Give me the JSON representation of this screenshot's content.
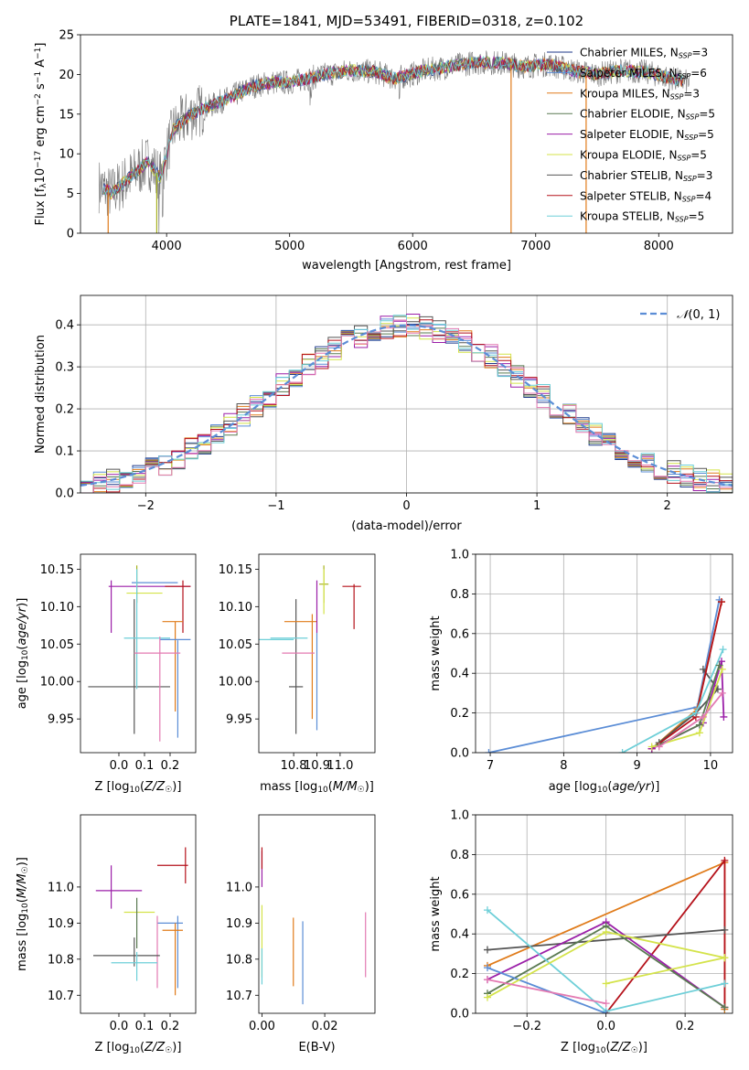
{
  "colors": {
    "Chabrier MILES": "#1f3a8a",
    "Salpeter MILES": "#5b8dd6",
    "Kroupa MILES": "#e07b1a",
    "Chabrier ELODIE": "#5a7a52",
    "Salpeter ELODIE": "#9b1fa8",
    "Kroupa ELODIE": "#d4e34a",
    "Chabrier STELIB": "#555555",
    "Salpeter STELIB": "#b5121b",
    "Kroupa STELIB": "#6ecfd8",
    "pink": "#e37ab2",
    "olive": "#a7b21d",
    "normal_curve": "#5b8dd6"
  },
  "chart_data": [
    {
      "id": "spectrum",
      "type": "line",
      "title": "PLATE=1841, MJD=53491, FIBERID=0318, z=0.102",
      "xlabel": "wavelength [Angstrom, rest frame]",
      "ylabel": "Flux [f$_\\lambda$10$^{-17}$ erg cm$^{-2}$ s$^{-1}$ A$^{-1}$]",
      "ylabel_parts": {
        "a": "Flux [f",
        "sub1": "λ",
        "b": "10",
        "sup1": "−17",
        "c": " erg cm",
        "sup2": "−2",
        "d": " s",
        "sup3": "−1",
        "e": " A",
        "sup4": "−1",
        "f": "]"
      },
      "xlim": [
        3300,
        8600
      ],
      "ylim": [
        0,
        25
      ],
      "xticks": [
        4000,
        5000,
        6000,
        7000,
        8000
      ],
      "yticks": [
        0,
        5,
        10,
        15,
        20,
        25
      ],
      "grid": false,
      "legend_position": "top-right",
      "continuum_knots": {
        "x": [
          3450,
          3550,
          3700,
          3850,
          3950,
          4050,
          4200,
          4350,
          4500,
          4700,
          4850,
          5000,
          5150,
          5300,
          5500,
          5700,
          5850,
          5950,
          6100,
          6300,
          6500,
          6700,
          6900,
          7100,
          7300,
          7500,
          7700,
          7900,
          8100,
          8250
        ],
        "y": [
          6,
          5,
          7,
          9,
          7,
          13,
          15,
          16,
          17,
          18.5,
          19,
          19,
          19.5,
          20,
          20.5,
          20.3,
          19.5,
          19.8,
          20.5,
          21,
          21.5,
          21.5,
          21,
          21.3,
          20.5,
          20,
          20.5,
          20.3,
          19.5,
          19
        ]
      },
      "legend": [
        {
          "name": "Chabrier MILES",
          "lib": "SSP",
          "n": "3"
        },
        {
          "name": "Salpeter MILES",
          "lib": "SSP",
          "n": "6"
        },
        {
          "name": "Kroupa MILES",
          "lib": "SSP",
          "n": "3"
        },
        {
          "name": "Chabrier ELODIE",
          "lib": "SSP",
          "n": "5"
        },
        {
          "name": "Salpeter ELODIE",
          "lib": "SSP",
          "n": "5"
        },
        {
          "name": "Kroupa ELODIE",
          "lib": "SSP",
          "n": "5"
        },
        {
          "name": "Chabrier STELIB",
          "lib": "SSP",
          "n": "3"
        },
        {
          "name": "Salpeter STELIB",
          "lib": "SSP",
          "n": "4"
        },
        {
          "name": "Kroupa STELIB",
          "lib": "SSP",
          "n": "5"
        }
      ]
    },
    {
      "id": "histogram",
      "type": "line",
      "xlabel": "(data-model)/error",
      "ylabel": "Normed distribution",
      "xlim": [
        -2.5,
        2.5
      ],
      "ylim": [
        0,
        0.47
      ],
      "xticks": [
        -2,
        -1,
        0,
        1,
        2
      ],
      "yticks": [
        0.0,
        0.1,
        0.2,
        0.3,
        0.4
      ],
      "grid": true,
      "legend_position": "top-right",
      "legend": [
        {
          "name": "N(0,1)",
          "style": "dashed"
        }
      ],
      "bin_width": 0.1
    },
    {
      "id": "age_vs_Z",
      "type": "scatter",
      "xlabel": "Z [log10(Z/Z☉)]",
      "ylabel": "age  [log10(age/yr)]",
      "xlim": [
        -0.15,
        0.3
      ],
      "ylim": [
        9.905,
        10.17
      ],
      "xticks": [
        0.0,
        0.1,
        0.2
      ],
      "yticks": [
        9.95,
        10.0,
        10.05,
        10.1,
        10.15
      ],
      "points": [
        {
          "c": "Chabrier STELIB",
          "x": 0.04,
          "xe": 0.16,
          "y": 9.993,
          "ye": 0
        },
        {
          "c": "Chabrier STELIB",
          "x": 0.06,
          "xe": 0,
          "y": 10.02,
          "ye": 0.09
        },
        {
          "c": "Salpeter ELODIE",
          "x": -0.03,
          "xe": 0,
          "y": 10.1,
          "ye": 0.035
        },
        {
          "c": "Salpeter ELODIE",
          "x": 0.12,
          "xe": 0.16,
          "y": 10.127,
          "ye": 0
        },
        {
          "c": "Kroupa ELODIE",
          "x": 0.1,
          "xe": 0.07,
          "y": 10.118,
          "ye": 0
        },
        {
          "c": "olive",
          "x": 0.07,
          "xe": 0,
          "y": 10.13,
          "ye": 0.025
        },
        {
          "c": "Salpeter STELIB",
          "x": 0.23,
          "xe": 0.05,
          "y": 10.127,
          "ye": 0
        },
        {
          "c": "Salpeter STELIB",
          "x": 0.25,
          "xe": 0,
          "y": 10.1,
          "ye": 0.035
        },
        {
          "c": "Salpeter MILES",
          "x": 0.14,
          "xe": 0.09,
          "y": 10.132,
          "ye": 0
        },
        {
          "c": "Kroupa STELIB",
          "x": 0.11,
          "xe": 0.09,
          "y": 10.058,
          "ye": 0
        },
        {
          "c": "Kroupa STELIB",
          "x": 0.07,
          "xe": 0,
          "y": 10.07,
          "ye": 0.08
        },
        {
          "c": "Kroupa MILES",
          "x": 0.21,
          "xe": 0.04,
          "y": 10.08,
          "ye": 0
        },
        {
          "c": "Kroupa MILES",
          "x": 0.22,
          "xe": 0,
          "y": 10.02,
          "ye": 0.06
        },
        {
          "c": "Salpeter MILES",
          "x": 0.22,
          "xe": 0.06,
          "y": 10.056,
          "ye": 0
        },
        {
          "c": "Salpeter MILES",
          "x": 0.23,
          "xe": 0,
          "y": 9.99,
          "ye": 0.065
        },
        {
          "c": "pink",
          "x": 0.15,
          "xe": 0.09,
          "y": 10.038,
          "ye": 0
        },
        {
          "c": "pink",
          "x": 0.16,
          "xe": 0,
          "y": 9.99,
          "ye": 0.07
        }
      ]
    },
    {
      "id": "age_vs_mass",
      "type": "scatter",
      "xlabel": "mass [log10(M/M☉)]",
      "ylabel": "",
      "xlim": [
        10.65,
        11.15
      ],
      "ylim": [
        9.905,
        10.17
      ],
      "xticks": [
        10.8,
        10.9,
        11.0
      ],
      "yticks": [
        9.95,
        10.0,
        10.05,
        10.1,
        10.15
      ],
      "points": [
        {
          "c": "Chabrier STELIB",
          "x": 10.81,
          "xe": 0.03,
          "y": 9.993,
          "ye": 0
        },
        {
          "c": "Chabrier STELIB",
          "x": 10.81,
          "xe": 0,
          "y": 10.02,
          "ye": 0.09
        },
        {
          "c": "Kroupa STELIB",
          "x": 10.72,
          "xe": 0.08,
          "y": 10.056,
          "ye": 0
        },
        {
          "c": "Kroupa STELIB",
          "x": 10.78,
          "xe": 0.08,
          "y": 10.058,
          "ye": 0
        },
        {
          "c": "Kroupa MILES",
          "x": 10.83,
          "xe": 0.07,
          "y": 10.08,
          "ye": 0
        },
        {
          "c": "Kroupa MILES",
          "x": 10.88,
          "xe": 0,
          "y": 10.02,
          "ye": 0.07
        },
        {
          "c": "pink",
          "x": 10.82,
          "xe": 0.07,
          "y": 10.038,
          "ye": 0
        },
        {
          "c": "Salpeter MILES",
          "x": 10.9,
          "xe": 0,
          "y": 10.0,
          "ye": 0.065
        },
        {
          "c": "Salpeter ELODIE",
          "x": 10.9,
          "xe": 0,
          "y": 10.1,
          "ye": 0.035
        },
        {
          "c": "olive",
          "x": 10.93,
          "xe": 0.02,
          "y": 10.13,
          "ye": 0
        },
        {
          "c": "olive",
          "x": 10.93,
          "xe": 0,
          "y": 10.13,
          "ye": 0.025
        },
        {
          "c": "Kroupa ELODIE",
          "x": 10.93,
          "xe": 0,
          "y": 10.12,
          "ye": 0.03
        },
        {
          "c": "Salpeter STELIB",
          "x": 11.05,
          "xe": 0.04,
          "y": 10.127,
          "ye": 0
        },
        {
          "c": "Salpeter STELIB",
          "x": 11.06,
          "xe": 0,
          "y": 10.1,
          "ye": 0.03
        }
      ]
    },
    {
      "id": "weight_vs_age",
      "type": "line",
      "xlabel": "age  [log10(age/yr)]",
      "ylabel": "mass weight",
      "xlim": [
        6.8,
        10.3
      ],
      "ylim": [
        0,
        1.0
      ],
      "xticks": [
        7,
        8,
        9,
        10
      ],
      "yticks": [
        0.0,
        0.2,
        0.4,
        0.6,
        0.8,
        1.0
      ],
      "grid": true,
      "series": [
        {
          "c": "Salpeter MILES",
          "x": [
            6.98,
            9.82,
            10.12
          ],
          "y": [
            0.0,
            0.23,
            0.77
          ]
        },
        {
          "c": "Kroupa MILES",
          "x": [
            9.2,
            9.82,
            10.15
          ],
          "y": [
            0.02,
            0.22,
            0.76
          ]
        },
        {
          "c": "Chabrier STELIB",
          "x": [
            9.3,
            9.8,
            10.1,
            9.9
          ],
          "y": [
            0.05,
            0.2,
            0.32,
            0.42
          ]
        },
        {
          "c": "Salpeter STELIB",
          "x": [
            9.2,
            9.8,
            10.15
          ],
          "y": [
            0.02,
            0.18,
            0.76
          ]
        },
        {
          "c": "Salpeter ELODIE",
          "x": [
            9.2,
            9.9,
            10.15,
            10.18
          ],
          "y": [
            0.02,
            0.15,
            0.46,
            0.18
          ]
        },
        {
          "c": "Kroupa STELIB",
          "x": [
            8.8,
            9.8,
            10.17
          ],
          "y": [
            0.0,
            0.2,
            0.52
          ]
        },
        {
          "c": "Kroupa ELODIE",
          "x": [
            9.2,
            9.85,
            10.16
          ],
          "y": [
            0.03,
            0.1,
            0.42
          ]
        },
        {
          "c": "Chabrier ELODIE",
          "x": [
            9.3,
            9.85,
            10.12
          ],
          "y": [
            0.04,
            0.14,
            0.44
          ]
        },
        {
          "c": "pink",
          "x": [
            9.3,
            9.9,
            10.16
          ],
          "y": [
            0.03,
            0.18,
            0.3
          ]
        }
      ]
    },
    {
      "id": "mass_vs_Z",
      "type": "scatter",
      "xlabel": "Z [log10(Z/Z☉)]",
      "ylabel": "mass [log10(M/M☉)]",
      "xlim": [
        -0.15,
        0.3
      ],
      "ylim": [
        10.65,
        11.2
      ],
      "xticks": [
        0.0,
        0.1,
        0.2
      ],
      "yticks": [
        10.7,
        10.8,
        10.9,
        11.0
      ],
      "points": [
        {
          "c": "Salpeter STELIB",
          "x": 0.21,
          "xe": 0.06,
          "y": 11.06,
          "ye": 0
        },
        {
          "c": "Salpeter STELIB",
          "x": 0.26,
          "xe": 0,
          "y": 11.06,
          "ye": 0.05
        },
        {
          "c": "Salpeter ELODIE",
          "x": 0.0,
          "xe": 0.09,
          "y": 10.99,
          "ye": 0
        },
        {
          "c": "Salpeter ELODIE",
          "x": -0.03,
          "xe": 0,
          "y": 11.0,
          "ye": 0.06
        },
        {
          "c": "Kroupa ELODIE",
          "x": 0.08,
          "xe": 0.06,
          "y": 10.93,
          "ye": 0
        },
        {
          "c": "Chabrier ELODIE",
          "x": 0.07,
          "xe": 0,
          "y": 10.9,
          "ye": 0.07
        },
        {
          "c": "Salpeter MILES",
          "x": 0.2,
          "xe": 0.05,
          "y": 10.9,
          "ye": 0
        },
        {
          "c": "Salpeter MILES",
          "x": 0.23,
          "xe": 0,
          "y": 10.82,
          "ye": 0.1
        },
        {
          "c": "Kroupa MILES",
          "x": 0.21,
          "xe": 0.04,
          "y": 10.88,
          "ye": 0
        },
        {
          "c": "Kroupa MILES",
          "x": 0.22,
          "xe": 0,
          "y": 10.8,
          "ye": 0.1
        },
        {
          "c": "pink",
          "x": 0.15,
          "xe": 0,
          "y": 10.82,
          "ye": 0.1
        },
        {
          "c": "Chabrier STELIB",
          "x": 0.03,
          "xe": 0.13,
          "y": 10.81,
          "ye": 0
        },
        {
          "c": "Chabrier STELIB",
          "x": 0.06,
          "xe": 0,
          "y": 10.82,
          "ye": 0.04
        },
        {
          "c": "Kroupa STELIB",
          "x": 0.06,
          "xe": 0.09,
          "y": 10.79,
          "ye": 0
        },
        {
          "c": "Kroupa STELIB",
          "x": 0.07,
          "xe": 0,
          "y": 10.78,
          "ye": 0.04
        }
      ]
    },
    {
      "id": "mass_vs_EBV",
      "type": "scatter",
      "xlabel": "E(B-V)",
      "ylabel": "",
      "xlim": [
        -0.001,
        0.036
      ],
      "ylim": [
        10.65,
        11.2
      ],
      "xticks": [
        0.0,
        0.02
      ],
      "yticks": [
        10.7,
        10.8,
        10.9,
        11.0
      ],
      "points": [
        {
          "c": "Salpeter ELODIE",
          "x": 0.0,
          "xe": 0,
          "y": 11.05,
          "ye": 0.05
        },
        {
          "c": "Salpeter STELIB",
          "x": 0.0,
          "xe": 0,
          "y": 11.08,
          "ye": 0.03
        },
        {
          "c": "Kroupa ELODIE",
          "x": 0.0,
          "xe": 0,
          "y": 10.85,
          "ye": 0.1
        },
        {
          "c": "Kroupa STELIB",
          "x": 0.0,
          "xe": 0,
          "y": 10.78,
          "ye": 0.05
        },
        {
          "c": "Kroupa MILES",
          "x": 0.01,
          "xe": 0,
          "y": 10.82,
          "ye": 0.095
        },
        {
          "c": "Salpeter MILES",
          "x": 0.013,
          "xe": 0,
          "y": 10.79,
          "ye": 0.115
        },
        {
          "c": "pink",
          "x": 0.033,
          "xe": 0,
          "y": 10.84,
          "ye": 0.09
        }
      ]
    },
    {
      "id": "weight_vs_Z",
      "type": "line",
      "xlabel": "Z [log10(Z/Z☉)]",
      "ylabel": "mass weight",
      "xlim": [
        -0.33,
        0.32
      ],
      "ylim": [
        0,
        1.0
      ],
      "xticks": [
        -0.2,
        0.0,
        0.2
      ],
      "yticks": [
        0.0,
        0.2,
        0.4,
        0.6,
        0.8,
        1.0
      ],
      "grid": true,
      "series": [
        {
          "c": "Kroupa MILES",
          "x": [
            -0.3,
            0.3,
            0.3
          ],
          "y": [
            0.24,
            0.76,
            0.02
          ]
        },
        {
          "c": "Salpeter STELIB",
          "x": [
            0.0,
            0.3,
            0.3
          ],
          "y": [
            0.0,
            0.77,
            0.03
          ]
        },
        {
          "c": "Chabrier STELIB",
          "x": [
            -0.3,
            0.3
          ],
          "y": [
            0.32,
            0.42
          ]
        },
        {
          "c": "Salpeter ELODIE",
          "x": [
            -0.3,
            0.0,
            0.3
          ],
          "y": [
            0.17,
            0.46,
            0.03
          ]
        },
        {
          "c": "Chabrier ELODIE",
          "x": [
            -0.3,
            0.0,
            0.3
          ],
          "y": [
            0.1,
            0.44,
            0.03
          ]
        },
        {
          "c": "Kroupa STELIB",
          "x": [
            -0.3,
            0.0,
            0.3
          ],
          "y": [
            0.52,
            0.01,
            0.15
          ]
        },
        {
          "c": "Salpeter MILES",
          "x": [
            -0.3,
            0.0
          ],
          "y": [
            0.23,
            0.0
          ]
        },
        {
          "c": "Kroupa ELODIE",
          "x": [
            -0.3,
            0.0,
            0.3
          ],
          "y": [
            0.08,
            0.41,
            0.28
          ]
        },
        {
          "c": "pink",
          "x": [
            -0.3,
            0.0
          ],
          "y": [
            0.17,
            0.05
          ]
        },
        {
          "c": "Kroupa ELODIE",
          "x": [
            0.0,
            0.3
          ],
          "y": [
            0.15,
            0.28
          ]
        }
      ]
    }
  ]
}
